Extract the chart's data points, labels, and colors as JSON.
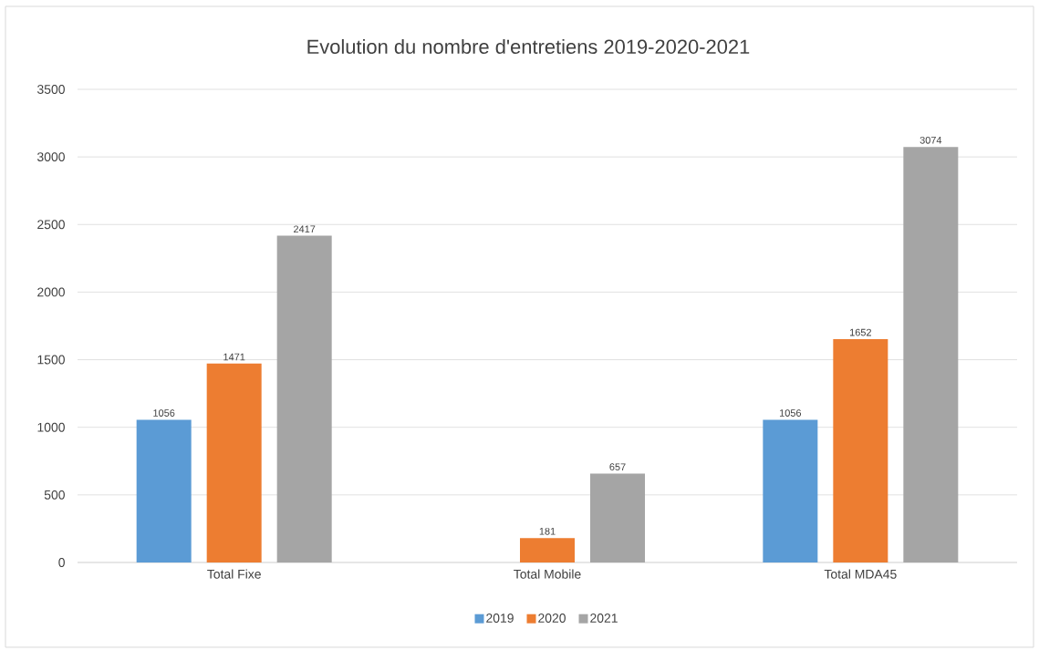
{
  "chart_data": {
    "type": "bar",
    "title": "Evolution du nombre d'entretiens 2019-2020-2021",
    "categories": [
      "Total Fixe",
      "Total Mobile",
      "Total MDA45"
    ],
    "series": [
      {
        "name": "2019",
        "color": "#5b9bd5",
        "values": [
          1056,
          null,
          1056
        ]
      },
      {
        "name": "2020",
        "color": "#ed7d31",
        "values": [
          1471,
          181,
          1652
        ]
      },
      {
        "name": "2021",
        "color": "#a5a5a5",
        "values": [
          2417,
          657,
          3074
        ]
      }
    ],
    "ylim": [
      0,
      3500
    ],
    "yticks": [
      0,
      500,
      1000,
      1500,
      2000,
      2500,
      3000,
      3500
    ],
    "grid": "y",
    "legend": "bottom",
    "data_labels": true
  }
}
